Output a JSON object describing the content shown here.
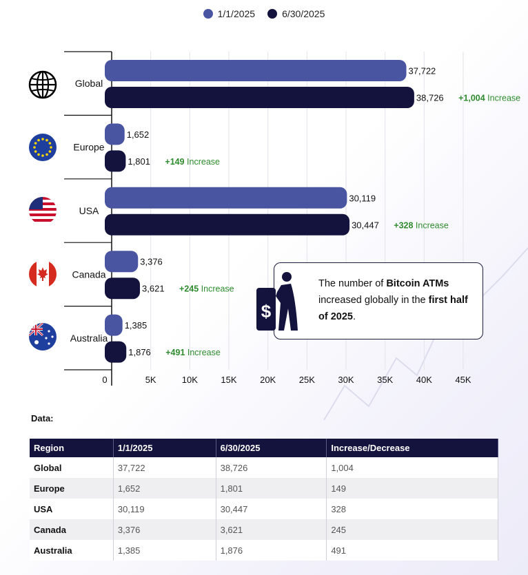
{
  "chart_data": {
    "type": "bar",
    "orientation": "horizontal",
    "categories": [
      "Global",
      "Europe",
      "USA",
      "Canada",
      "Australia"
    ],
    "series": [
      {
        "name": "1/1/2025",
        "values": [
          37722,
          1652,
          30119,
          3376,
          1385
        ]
      },
      {
        "name": "6/30/2025",
        "values": [
          38726,
          1801,
          30447,
          3621,
          1876
        ]
      }
    ],
    "value_labels": [
      [
        "37,722",
        "1,652",
        "30,119",
        "3,376",
        "1,385"
      ],
      [
        "38,726",
        "1,801",
        "30,447",
        "3,621",
        "1,876"
      ]
    ],
    "increases": [
      "+1,004",
      "+149",
      "+328",
      "+245",
      "+491"
    ],
    "increase_suffix": "Increase",
    "xlim": [
      0,
      45000
    ],
    "ticks": [
      0,
      5000,
      10000,
      15000,
      20000,
      25000,
      30000,
      35000,
      40000,
      45000
    ],
    "tick_labels": [
      "0",
      "5K",
      "10K",
      "15K",
      "20K",
      "25K",
      "30K",
      "35K",
      "40K",
      "45K"
    ],
    "grid": true,
    "legend": "top-center",
    "category_icons": [
      "globe-icon",
      "eu-flag-icon",
      "us-flag-icon",
      "canada-flag-icon",
      "australia-flag-icon"
    ]
  },
  "colors": {
    "series1": "#4a55a2",
    "series2": "#13133d",
    "increase": "#2e8b2e"
  },
  "callout": {
    "text_1": "The number of ",
    "bold_1": "Bitcoin ATMs",
    "text_2": " increased globally  in the ",
    "bold_2": "first half of 2025",
    "text_3": "."
  },
  "table": {
    "heading": "Data:",
    "headers": [
      "Region",
      "1/1/2025",
      "6/30/2025",
      "Increase/Decrease"
    ],
    "rows": [
      [
        "Global",
        "37,722",
        "38,726",
        "1,004"
      ],
      [
        "Europe",
        "1,652",
        "1,801",
        "149"
      ],
      [
        "USA",
        "30,119",
        "30,447",
        "328"
      ],
      [
        "Canada",
        "3,376",
        "3,621",
        "245"
      ],
      [
        "Australia",
        "1,385",
        "1,876",
        "491"
      ]
    ]
  }
}
